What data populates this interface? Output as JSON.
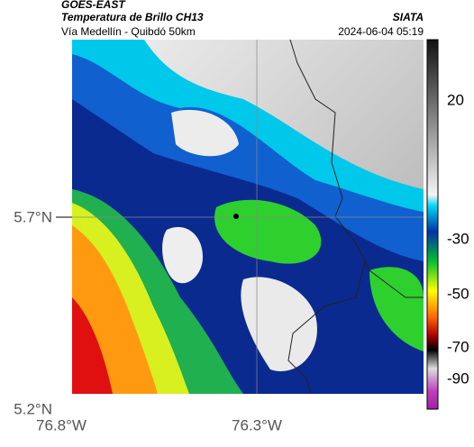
{
  "header": {
    "title": "GOES-EAST",
    "subtitle": "Temperatura de Brillo CH13",
    "source": "SIATA",
    "region": "Vía Medellín - Quibdó 50km",
    "datetime": "2024-06-04 05:19"
  },
  "map": {
    "lat_labels": [
      "5.7°N",
      "5.2°N"
    ],
    "lon_labels": [
      "76.8°W",
      "76.3°W"
    ]
  },
  "colorbar": {
    "labels": [
      "20",
      "-30",
      "-50",
      "-70",
      "-90"
    ]
  }
}
